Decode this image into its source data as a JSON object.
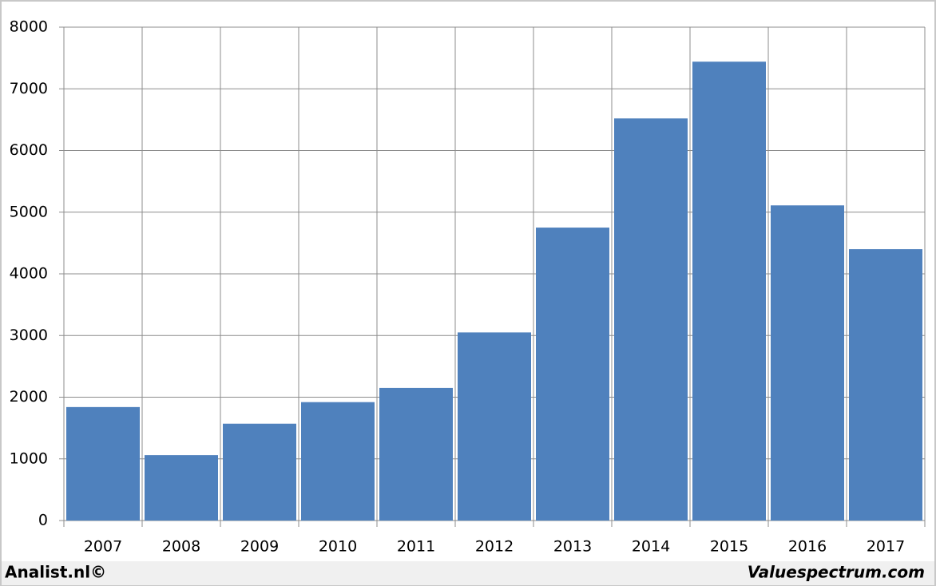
{
  "chart_data": {
    "type": "bar",
    "categories": [
      "2007",
      "2008",
      "2009",
      "2010",
      "2011",
      "2012",
      "2013",
      "2014",
      "2015",
      "2016",
      "2017"
    ],
    "values": [
      1840,
      1060,
      1570,
      1920,
      2150,
      3050,
      4750,
      6520,
      7440,
      5110,
      4400
    ],
    "color": "#4f81bd",
    "ylim": [
      0,
      8000
    ],
    "yticks": [
      0,
      1000,
      2000,
      3000,
      4000,
      5000,
      6000,
      7000,
      8000
    ],
    "grid": true,
    "annotations": [
      "Analist.nl©",
      "Valuespectrum.com"
    ]
  }
}
